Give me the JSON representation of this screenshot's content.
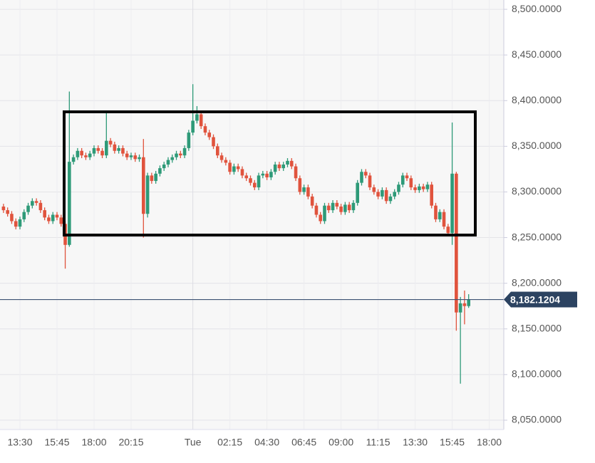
{
  "chart_data": {
    "type": "candlestick",
    "categories": [
      null,
      null,
      null,
      null,
      "13:30",
      null,
      null,
      null,
      null,
      null,
      null,
      null,
      null,
      "15:45",
      null,
      null,
      null,
      null,
      null,
      null,
      null,
      null,
      "18:00",
      null,
      null,
      null,
      null,
      null,
      null,
      null,
      null,
      "20:15",
      null,
      null,
      null,
      null,
      null,
      null,
      null,
      null,
      null,
      null,
      null,
      null,
      null,
      null,
      "Tue",
      null,
      null,
      null,
      null,
      null,
      null,
      null,
      null,
      "02:15",
      null,
      null,
      null,
      null,
      null,
      null,
      null,
      null,
      "04:30",
      null,
      null,
      null,
      null,
      null,
      null,
      null,
      null,
      "06:45",
      null,
      null,
      null,
      null,
      null,
      null,
      null,
      null,
      "09:00",
      null,
      null,
      null,
      null,
      null,
      null,
      null,
      null,
      "11:15",
      null,
      null,
      null,
      null,
      null,
      null,
      null,
      null,
      "13:30",
      null,
      null,
      null,
      null,
      null,
      null,
      null,
      null,
      "15:45",
      null,
      null,
      null,
      null,
      null,
      null,
      null,
      null,
      "18:00",
      null,
      null,
      null
    ],
    "open": [
      8284,
      8280,
      8276,
      8268,
      8262,
      8270,
      8278,
      8285,
      8290,
      8288,
      8280,
      8272,
      8268,
      8275,
      8272,
      8265,
      8242,
      8333,
      8338,
      8345,
      8340,
      8338,
      8342,
      8348,
      8345,
      8340,
      8356,
      8352,
      8345,
      8348,
      8342,
      8338,
      8340,
      8336,
      8338,
      8276,
      8318,
      8312,
      8320,
      8326,
      8330,
      8335,
      8338,
      8342,
      8340,
      8348,
      8365,
      8378,
      8385,
      8372,
      8365,
      8360,
      8350,
      8340,
      8335,
      8332,
      8322,
      8328,
      8325,
      8318,
      8315,
      8310,
      8305,
      8318,
      8320,
      8316,
      8322,
      8330,
      8326,
      8330,
      8334,
      8328,
      8315,
      8300,
      8305,
      8295,
      8285,
      8275,
      8268,
      8285,
      8280,
      8288,
      8284,
      8278,
      8286,
      8280,
      8288,
      8310,
      8322,
      8318,
      8305,
      8300,
      8295,
      8302,
      8290,
      8295,
      8300,
      8308,
      8318,
      8315,
      8305,
      8302,
      8306,
      8303,
      8308,
      8285,
      8270,
      8278,
      8262,
      8255,
      8320,
      8168,
      8178,
      8175,
      null,
      null,
      null,
      null,
      null,
      null,
      null,
      null
    ],
    "high": [
      8287,
      8283,
      8279,
      8271,
      8273,
      8281,
      8288,
      8293,
      8293,
      8291,
      8283,
      8275,
      8278,
      8278,
      8275,
      8268,
      8410,
      8341,
      8348,
      8348,
      8343,
      8345,
      8351,
      8351,
      8348,
      8388,
      8359,
      8355,
      8351,
      8351,
      8345,
      8343,
      8343,
      8341,
      8358,
      8321,
      8321,
      8323,
      8329,
      8333,
      8338,
      8341,
      8345,
      8345,
      8351,
      8368,
      8418,
      8394,
      8388,
      8375,
      8368,
      8363,
      8353,
      8343,
      8338,
      8335,
      8331,
      8331,
      8328,
      8321,
      8318,
      8313,
      8321,
      8323,
      8323,
      8325,
      8333,
      8333,
      8333,
      8337,
      8337,
      8331,
      8318,
      8308,
      8308,
      8298,
      8288,
      8278,
      8288,
      8288,
      8291,
      8291,
      8287,
      8289,
      8289,
      8291,
      8313,
      8325,
      8325,
      8321,
      8308,
      8303,
      8305,
      8305,
      8298,
      8303,
      8311,
      8321,
      8321,
      8318,
      8308,
      8309,
      8309,
      8311,
      8311,
      8288,
      8281,
      8281,
      8265,
      8376,
      8322,
      8185,
      8192,
      8188,
      null,
      null,
      null,
      null,
      null,
      null,
      null,
      null
    ],
    "low": [
      8277,
      8273,
      8265,
      8259,
      8259,
      8267,
      8275,
      8282,
      8285,
      8277,
      8269,
      8265,
      8265,
      8269,
      8262,
      8216,
      8240,
      8330,
      8335,
      8337,
      8335,
      8335,
      8339,
      8342,
      8337,
      8337,
      8349,
      8342,
      8342,
      8339,
      8335,
      8335,
      8333,
      8333,
      8250,
      8272,
      8309,
      8309,
      8317,
      8323,
      8327,
      8332,
      8335,
      8337,
      8337,
      8345,
      8362,
      8375,
      8369,
      8362,
      8357,
      8347,
      8337,
      8332,
      8329,
      8319,
      8319,
      8322,
      8315,
      8312,
      8307,
      8302,
      8302,
      8315,
      8313,
      8313,
      8319,
      8323,
      8323,
      8327,
      8325,
      8312,
      8297,
      8297,
      8292,
      8282,
      8272,
      8265,
      8265,
      8277,
      8277,
      8281,
      8275,
      8275,
      8277,
      8277,
      8285,
      8307,
      8315,
      8302,
      8297,
      8292,
      8292,
      8287,
      8287,
      8292,
      8297,
      8305,
      8312,
      8302,
      8299,
      8299,
      8300,
      8300,
      8282,
      8267,
      8267,
      8259,
      8252,
      8242,
      8148,
      8090,
      8155,
      8173,
      null,
      null,
      null,
      null,
      null,
      null,
      null,
      null
    ],
    "close": [
      8280,
      8276,
      8268,
      8262,
      8270,
      8278,
      8285,
      8290,
      8288,
      8280,
      8272,
      8268,
      8275,
      8272,
      8265,
      8242,
      8333,
      8338,
      8345,
      8340,
      8338,
      8342,
      8348,
      8345,
      8340,
      8356,
      8352,
      8345,
      8348,
      8342,
      8338,
      8340,
      8336,
      8338,
      8276,
      8318,
      8312,
      8320,
      8326,
      8330,
      8335,
      8338,
      8342,
      8340,
      8348,
      8365,
      8378,
      8385,
      8372,
      8365,
      8360,
      8350,
      8340,
      8335,
      8332,
      8322,
      8328,
      8325,
      8318,
      8315,
      8310,
      8305,
      8318,
      8320,
      8316,
      8322,
      8330,
      8326,
      8330,
      8334,
      8328,
      8315,
      8300,
      8305,
      8295,
      8285,
      8275,
      8268,
      8285,
      8280,
      8288,
      8284,
      8278,
      8286,
      8280,
      8288,
      8310,
      8322,
      8318,
      8305,
      8300,
      8295,
      8302,
      8290,
      8295,
      8300,
      8308,
      8318,
      8315,
      8305,
      8302,
      8306,
      8303,
      8308,
      8285,
      8270,
      8278,
      8262,
      8255,
      8320,
      8168,
      8178,
      8175,
      8182,
      null,
      null,
      null,
      null,
      null,
      null,
      null,
      null
    ],
    "up_color": "#2e9a78",
    "down_color": "#e0533d",
    "ylim": [
      8039.8,
      8510.2
    ],
    "yticks": [
      {
        "value": 8050,
        "label": "8,050.0000"
      },
      {
        "value": 8100,
        "label": "8,100.0000"
      },
      {
        "value": 8150,
        "label": "8,150.0000"
      },
      {
        "value": 8200,
        "label": "8,200.0000"
      },
      {
        "value": 8250,
        "label": "8,250.0000"
      },
      {
        "value": 8300,
        "label": "8,300.0000"
      },
      {
        "value": 8350,
        "label": "8,350.0000"
      },
      {
        "value": 8400,
        "label": "8,400.0000"
      },
      {
        "value": 8450,
        "label": "8,450.0000"
      },
      {
        "value": 8500,
        "label": "8,500.0000"
      }
    ],
    "current_price": {
      "value": 8182.1204,
      "label": "8,182.1204"
    },
    "grid": true
  }
}
